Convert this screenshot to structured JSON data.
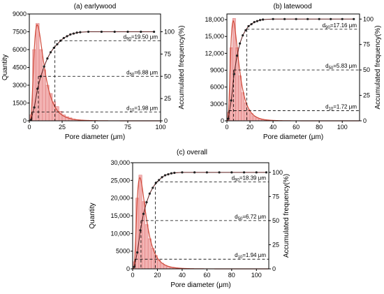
{
  "colors": {
    "bar_fill": "#f2b3b3",
    "bar_stroke": "#e07b7b",
    "fit_line": "#d04a3a",
    "cumulative_line": "#5a1f1f",
    "cumulative_marker": "#222222",
    "axis": "#000000",
    "dashed": "#000000"
  },
  "chart_data": [
    {
      "id": "earlywood",
      "type": "histogram+cumulative",
      "title": "(a) earlywood",
      "xlabel": "Pore diameter (μm)",
      "ylabel": "Quantity",
      "y2label": "Accumulated frequency(%)",
      "xlim": [
        0,
        100
      ],
      "ylim": [
        0,
        9000
      ],
      "y2lim": [
        0,
        120
      ],
      "xticks": [
        0,
        25,
        50,
        75,
        100
      ],
      "yticks": [
        0,
        1500,
        3000,
        4500,
        6000,
        7500,
        9000
      ],
      "ytick_labels": [
        "0",
        "1500",
        "3000",
        "4500",
        "6000",
        "7500",
        "9000"
      ],
      "y2ticks": [
        0,
        25,
        50,
        75,
        100
      ],
      "bin_width": 2.5,
      "bars": [
        {
          "x": 1.25,
          "y": 500
        },
        {
          "x": 3.75,
          "y": 6000
        },
        {
          "x": 6.25,
          "y": 8200
        },
        {
          "x": 8.75,
          "y": 6000
        },
        {
          "x": 11.25,
          "y": 4300
        },
        {
          "x": 13.75,
          "y": 3000
        },
        {
          "x": 16.25,
          "y": 2300
        },
        {
          "x": 18.75,
          "y": 1600
        },
        {
          "x": 21.25,
          "y": 1200
        },
        {
          "x": 23.75,
          "y": 800
        },
        {
          "x": 26.25,
          "y": 500
        },
        {
          "x": 28.75,
          "y": 350
        },
        {
          "x": 31.25,
          "y": 250
        },
        {
          "x": 33.75,
          "y": 150
        },
        {
          "x": 36.25,
          "y": 100
        },
        {
          "x": 38.75,
          "y": 60
        }
      ],
      "fit_peak_x": 6.0,
      "fit_peak_y": 8100,
      "cumulative": [
        {
          "x": 1.25,
          "y": 1
        },
        {
          "x": 3.75,
          "y": 15
        },
        {
          "x": 6.25,
          "y": 36
        },
        {
          "x": 8.75,
          "y": 50
        },
        {
          "x": 11.25,
          "y": 61
        },
        {
          "x": 13.75,
          "y": 70
        },
        {
          "x": 16.25,
          "y": 77
        },
        {
          "x": 18.75,
          "y": 82
        },
        {
          "x": 21.25,
          "y": 86
        },
        {
          "x": 23.75,
          "y": 90
        },
        {
          "x": 26.25,
          "y": 93
        },
        {
          "x": 28.75,
          "y": 95
        },
        {
          "x": 31.25,
          "y": 97
        },
        {
          "x": 33.75,
          "y": 98
        },
        {
          "x": 36.25,
          "y": 99
        },
        {
          "x": 38.75,
          "y": 99.5
        },
        {
          "x": 45,
          "y": 100
        },
        {
          "x": 55,
          "y": 100
        },
        {
          "x": 65,
          "y": 100
        },
        {
          "x": 75,
          "y": 100
        },
        {
          "x": 85,
          "y": 100
        },
        {
          "x": 95,
          "y": 100
        }
      ],
      "percentiles": [
        {
          "prefix": "d",
          "sub": "90",
          "value": "=19.50 μm",
          "x": 19.5,
          "y2": 90
        },
        {
          "prefix": "d",
          "sub": "50",
          "value": "=6.88 μm",
          "x": 6.88,
          "y2": 50
        },
        {
          "prefix": "d",
          "sub": "10",
          "value": "=1.98 μm",
          "x": 1.98,
          "y2": 10
        }
      ]
    },
    {
      "id": "latewood",
      "type": "histogram+cumulative",
      "title": "(b) latewood",
      "xlabel": "Pore diameter (μm)",
      "ylabel": "",
      "y2label": "Accumulated frequency(%)",
      "xlim": [
        0,
        115
      ],
      "ylim": [
        0,
        19000
      ],
      "y2lim": [
        0,
        105
      ],
      "xticks": [
        0,
        20,
        40,
        60,
        80,
        100
      ],
      "yticks": [
        0,
        3000,
        6000,
        9000,
        12000,
        15000,
        18000
      ],
      "ytick_labels": [
        "0",
        "3000",
        "6000",
        "9000",
        "12,000",
        "15,000",
        "18,000"
      ],
      "y2ticks": [
        0,
        25,
        50,
        75,
        100
      ],
      "bin_width": 2.5,
      "bars": [
        {
          "x": 1.25,
          "y": 1500
        },
        {
          "x": 3.75,
          "y": 13000
        },
        {
          "x": 6.25,
          "y": 18200
        },
        {
          "x": 8.75,
          "y": 13000
        },
        {
          "x": 11.25,
          "y": 8000
        },
        {
          "x": 13.75,
          "y": 5000
        },
        {
          "x": 16.25,
          "y": 3200
        },
        {
          "x": 18.75,
          "y": 2000
        },
        {
          "x": 21.25,
          "y": 1300
        },
        {
          "x": 23.75,
          "y": 800
        },
        {
          "x": 26.25,
          "y": 500
        },
        {
          "x": 28.75,
          "y": 300
        },
        {
          "x": 31.25,
          "y": 180
        },
        {
          "x": 33.75,
          "y": 100
        }
      ],
      "fit_peak_x": 5.5,
      "fit_peak_y": 17800,
      "cumulative": [
        {
          "x": 1.25,
          "y": 2
        },
        {
          "x": 3.75,
          "y": 20
        },
        {
          "x": 6.25,
          "y": 46
        },
        {
          "x": 8.75,
          "y": 64
        },
        {
          "x": 11.25,
          "y": 76
        },
        {
          "x": 13.75,
          "y": 84
        },
        {
          "x": 16.25,
          "y": 89
        },
        {
          "x": 18.75,
          "y": 93
        },
        {
          "x": 21.25,
          "y": 95
        },
        {
          "x": 23.75,
          "y": 97
        },
        {
          "x": 26.25,
          "y": 98
        },
        {
          "x": 28.75,
          "y": 99
        },
        {
          "x": 31.25,
          "y": 99.5
        },
        {
          "x": 40,
          "y": 100
        },
        {
          "x": 50,
          "y": 100
        },
        {
          "x": 60,
          "y": 100
        },
        {
          "x": 70,
          "y": 100
        },
        {
          "x": 80,
          "y": 100
        },
        {
          "x": 90,
          "y": 100
        },
        {
          "x": 100,
          "y": 100
        },
        {
          "x": 110,
          "y": 100
        }
      ],
      "percentiles": [
        {
          "prefix": "d",
          "sub": "90",
          "value": "=17.16 μm",
          "x": 17.16,
          "y2": 90
        },
        {
          "prefix": "d",
          "sub": "50",
          "value": "=5.83 μm",
          "x": 5.83,
          "y2": 50
        },
        {
          "prefix": "d",
          "sub": "10",
          "value": "=1.72 μm",
          "x": 1.72,
          "y2": 10
        }
      ]
    },
    {
      "id": "overall",
      "type": "histogram+cumulative",
      "title": "(c) overall",
      "xlabel": "Pore diameter (μm)",
      "ylabel": "Quantity",
      "y2label": "Accumulated frequency(%)",
      "xlim": [
        0,
        110
      ],
      "ylim": [
        0,
        30000
      ],
      "y2lim": [
        0,
        110
      ],
      "xticks": [
        0,
        20,
        40,
        60,
        80,
        100
      ],
      "yticks": [
        0,
        5000,
        10000,
        15000,
        20000,
        25000,
        30000
      ],
      "ytick_labels": [
        "0",
        "5000",
        "10,000",
        "15,000",
        "20,000",
        "25,000",
        "30,000"
      ],
      "y2ticks": [
        0,
        25,
        50,
        75,
        100
      ],
      "bin_width": 2.5,
      "bars": [
        {
          "x": 1.25,
          "y": 2000
        },
        {
          "x": 3.75,
          "y": 20000
        },
        {
          "x": 6.25,
          "y": 26500
        },
        {
          "x": 8.75,
          "y": 19000
        },
        {
          "x": 11.25,
          "y": 12500
        },
        {
          "x": 13.75,
          "y": 8500
        },
        {
          "x": 16.25,
          "y": 5800
        },
        {
          "x": 18.75,
          "y": 3800
        },
        {
          "x": 21.25,
          "y": 2500
        },
        {
          "x": 23.75,
          "y": 1600
        },
        {
          "x": 26.25,
          "y": 1000
        },
        {
          "x": 28.75,
          "y": 650
        },
        {
          "x": 31.25,
          "y": 400
        },
        {
          "x": 33.75,
          "y": 250
        },
        {
          "x": 36.25,
          "y": 150
        },
        {
          "x": 38.75,
          "y": 80
        }
      ],
      "fit_peak_x": 5.8,
      "fit_peak_y": 25800,
      "cumulative": [
        {
          "x": 1.25,
          "y": 2
        },
        {
          "x": 3.75,
          "y": 17
        },
        {
          "x": 6.25,
          "y": 40
        },
        {
          "x": 8.75,
          "y": 57
        },
        {
          "x": 11.25,
          "y": 69
        },
        {
          "x": 13.75,
          "y": 78
        },
        {
          "x": 16.25,
          "y": 84
        },
        {
          "x": 18.75,
          "y": 89
        },
        {
          "x": 21.25,
          "y": 92
        },
        {
          "x": 23.75,
          "y": 95
        },
        {
          "x": 26.25,
          "y": 97
        },
        {
          "x": 28.75,
          "y": 98
        },
        {
          "x": 31.25,
          "y": 99
        },
        {
          "x": 33.75,
          "y": 99.5
        },
        {
          "x": 40,
          "y": 100
        },
        {
          "x": 50,
          "y": 100
        },
        {
          "x": 60,
          "y": 100
        },
        {
          "x": 70,
          "y": 100
        },
        {
          "x": 80,
          "y": 100
        },
        {
          "x": 90,
          "y": 100
        },
        {
          "x": 100,
          "y": 100
        },
        {
          "x": 108,
          "y": 100
        }
      ],
      "percentiles": [
        {
          "prefix": "d",
          "sub": "90",
          "value": "=18.39 μm",
          "x": 18.39,
          "y2": 90
        },
        {
          "prefix": "d",
          "sub": "50",
          "value": "=6.72 μm",
          "x": 6.72,
          "y2": 50
        },
        {
          "prefix": "d",
          "sub": "10",
          "value": "=1.94 μm",
          "x": 1.94,
          "y2": 10
        }
      ]
    }
  ]
}
